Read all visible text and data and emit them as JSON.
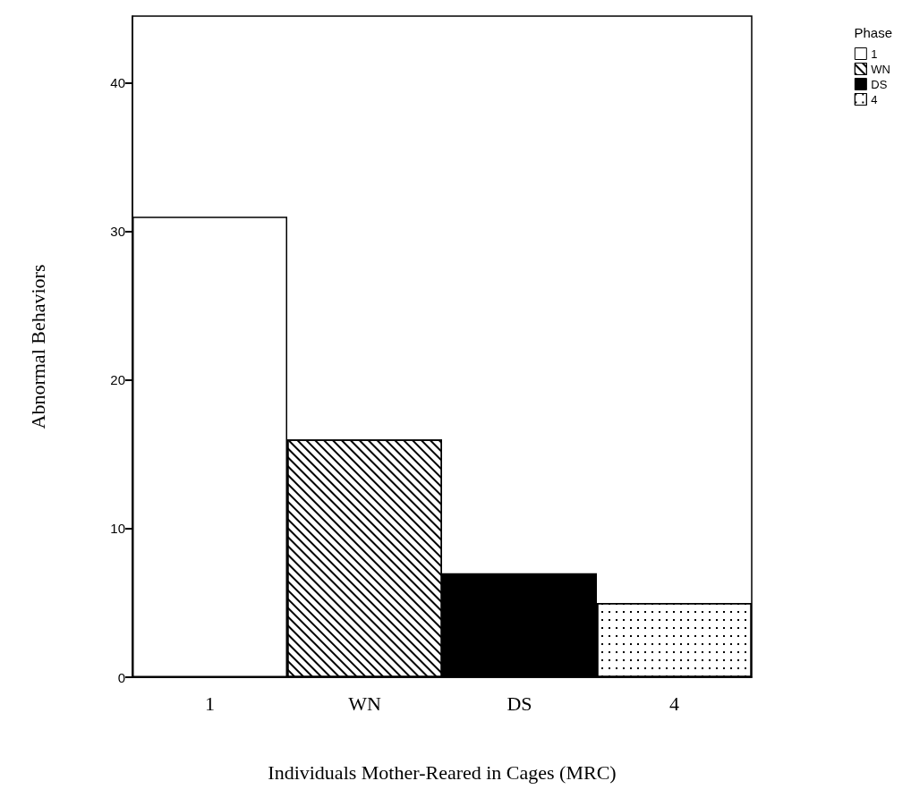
{
  "chart_data": {
    "type": "bar",
    "xlabel": "Individuals Mother-Reared in Cages (MRC)",
    "ylabel": "Abnormal Behaviors",
    "legend_title": "Phase",
    "categories": [
      "1",
      "WN",
      "DS",
      "4"
    ],
    "series": [
      {
        "name": "1",
        "color": "#ffffff",
        "values": [
          31,
          null,
          null,
          null
        ]
      },
      {
        "name": "WN",
        "color": "#ffffff",
        "values": [
          null,
          16,
          null,
          null
        ]
      },
      {
        "name": "DS",
        "color": "#000000",
        "values": [
          null,
          null,
          7,
          null
        ]
      },
      {
        "name": "4",
        "color": "#ffffff",
        "values": [
          null,
          null,
          null,
          5
        ]
      }
    ],
    "stacked": true,
    "ylim": [
      0,
      44.5
    ],
    "yticks": [
      0,
      10,
      20,
      30,
      40
    ],
    "grid": false,
    "legend": "top right"
  }
}
